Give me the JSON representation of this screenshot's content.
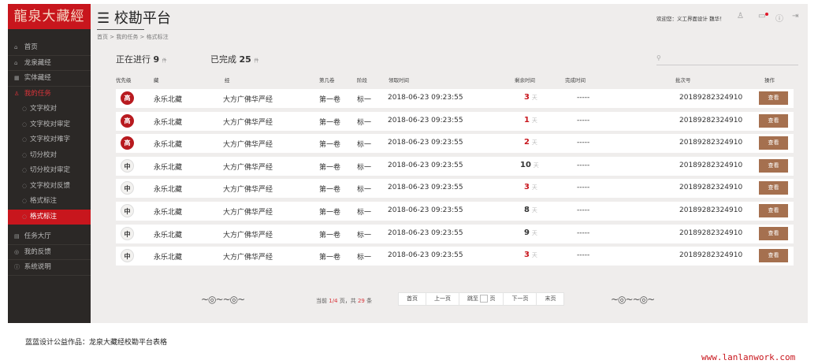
{
  "logo": "龍泉大藏經",
  "sidebar": {
    "items": [
      {
        "icon": "home-icon",
        "glyph": "⌂",
        "label": "首页"
      },
      {
        "icon": "temple-icon",
        "glyph": "⌂",
        "label": "龙泉藏经"
      },
      {
        "icon": "grid-icon",
        "glyph": "▦",
        "label": "实体藏经"
      }
    ],
    "my_tasks": {
      "icon": "user-icon",
      "glyph": "♙",
      "label": "我的任务"
    },
    "sub_items": [
      "文字校对",
      "文字校对审定",
      "文字校对难字",
      "切分校对",
      "切分校对审定",
      "文字校对反馈",
      "格式标注",
      "格式标注"
    ],
    "active_sub": 7,
    "bottom": [
      {
        "icon": "clipboard-icon",
        "glyph": "▤",
        "label": "任务大厅"
      },
      {
        "icon": "chat-icon",
        "glyph": "◎",
        "label": "我的反馈"
      },
      {
        "icon": "info-icon",
        "glyph": "ⓘ",
        "label": "系统说明"
      }
    ]
  },
  "header": {
    "menu_icon": "☰",
    "title": "校勘平台",
    "breadcrumb": "首页 > 我的任务 > 格式标注",
    "welcome": "欢迎您：义工界面设计 魏华！"
  },
  "stats": {
    "in_progress_label": "正在进行",
    "in_progress": "9",
    "completed_label": "已完成",
    "completed": "25",
    "unit": "件"
  },
  "search": {
    "placeholder": ""
  },
  "table": {
    "headers": [
      "优先级",
      "藏",
      "经",
      "第几卷",
      "阶段",
      "领取时间",
      "剩余时间",
      "完成时间",
      "批次号",
      "操作"
    ],
    "rows": [
      {
        "priority": "高",
        "level": "high",
        "zang": "永乐北藏",
        "jing": "大方广佛华严经",
        "juan": "第一卷",
        "stage": "标一",
        "time": "2018-06-23 09:23:55",
        "remain": "3",
        "done": "-----",
        "batch": "20189282324910",
        "action": "查看"
      },
      {
        "priority": "高",
        "level": "high",
        "zang": "永乐北藏",
        "jing": "大方广佛华严经",
        "juan": "第一卷",
        "stage": "标一",
        "time": "2018-06-23 09:23:55",
        "remain": "1",
        "done": "-----",
        "batch": "20189282324910",
        "action": "查看"
      },
      {
        "priority": "高",
        "level": "high",
        "zang": "永乐北藏",
        "jing": "大方广佛华严经",
        "juan": "第一卷",
        "stage": "标一",
        "time": "2018-06-23 09:23:55",
        "remain": "2",
        "done": "-----",
        "batch": "20189282324910",
        "action": "查看"
      },
      {
        "priority": "中",
        "level": "mid",
        "zang": "永乐北藏",
        "jing": "大方广佛华严经",
        "juan": "第一卷",
        "stage": "标一",
        "time": "2018-06-23 09:23:55",
        "remain": "10",
        "done": "-----",
        "batch": "20189282324910",
        "action": "查看"
      },
      {
        "priority": "中",
        "level": "mid",
        "zang": "永乐北藏",
        "jing": "大方广佛华严经",
        "juan": "第一卷",
        "stage": "标一",
        "time": "2018-06-23 09:23:55",
        "remain": "3",
        "done": "-----",
        "batch": "20189282324910",
        "action": "查看"
      },
      {
        "priority": "中",
        "level": "mid",
        "zang": "永乐北藏",
        "jing": "大方广佛华严经",
        "juan": "第一卷",
        "stage": "标一",
        "time": "2018-06-23 09:23:55",
        "remain": "8",
        "done": "-----",
        "batch": "20189282324910",
        "action": "查看"
      },
      {
        "priority": "中",
        "level": "mid",
        "zang": "永乐北藏",
        "jing": "大方广佛华严经",
        "juan": "第一卷",
        "stage": "标一",
        "time": "2018-06-23 09:23:55",
        "remain": "9",
        "done": "-----",
        "batch": "20189282324910",
        "action": "查看"
      },
      {
        "priority": "中",
        "level": "mid",
        "zang": "永乐北藏",
        "jing": "大方广佛华严经",
        "juan": "第一卷",
        "stage": "标一",
        "time": "2018-06-23 09:23:55",
        "remain": "3",
        "done": "-----",
        "batch": "20189282324910",
        "action": "查看"
      }
    ],
    "day_unit": "天"
  },
  "pagination": {
    "prefix": "当前",
    "current": "1/4",
    "mid": "页，共",
    "total": "29",
    "suffix": "条",
    "first": "首页",
    "prev": "上一页",
    "jump": "跳至",
    "page": "页",
    "next": "下一页",
    "last": "末页"
  },
  "caption": "蓝蓝设计公益作品：龙泉大藏经校勘平台表格",
  "watermark": "www.lanlanwork.com",
  "colors": {
    "brand_red": "#c8161d",
    "button_brown": "#a5704f",
    "sidebar": "#2b2826"
  }
}
